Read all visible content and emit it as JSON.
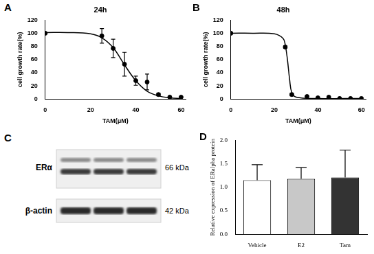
{
  "chart_data": [
    {
      "panel_label": "A",
      "type": "scatter",
      "title": "24h",
      "x_label": "TAM(μM)",
      "y_label": "cell growth rate(%)",
      "xlim": [
        0,
        62
      ],
      "xticks": [
        0,
        20,
        40,
        60
      ],
      "ylim": [
        0,
        120
      ],
      "yticks": [
        0,
        20,
        40,
        60,
        80,
        100,
        120
      ],
      "grid": false,
      "series": [
        {
          "type": "scatter",
          "marker": "circle",
          "color": "#000000",
          "x": [
            0,
            25,
            30,
            35,
            40,
            45,
            50,
            55,
            60
          ],
          "values": [
            100,
            96,
            77,
            53,
            28,
            26,
            7,
            3,
            3
          ],
          "errors": [
            null,
            11,
            14,
            18,
            7,
            12,
            2,
            null,
            null
          ]
        },
        {
          "type": "line",
          "marker": "none",
          "line_style": "solid",
          "color": "#000000",
          "x": [
            0,
            10,
            20,
            25,
            30,
            35,
            40,
            45,
            50,
            55,
            60
          ],
          "values": [
            101,
            101,
            99,
            93,
            78,
            52,
            28,
            12,
            5,
            2,
            1
          ]
        }
      ]
    },
    {
      "panel_label": "B",
      "type": "scatter",
      "title": "48h",
      "x_label": "TAM(μM)",
      "y_label": "cell growth rate(%)",
      "xlim": [
        0,
        62
      ],
      "xticks": [
        0,
        20,
        40,
        60
      ],
      "ylim": [
        0,
        120
      ],
      "yticks": [
        0,
        20,
        40,
        60,
        80,
        100,
        120
      ],
      "grid": false,
      "series": [
        {
          "type": "scatter",
          "marker": "circle",
          "color": "#000000",
          "x": [
            0,
            25,
            28,
            35,
            40,
            45,
            50,
            55,
            60
          ],
          "values": [
            100,
            79,
            7,
            4,
            2,
            3,
            1,
            1,
            1
          ],
          "errors": [
            null,
            2,
            2,
            null,
            null,
            null,
            null,
            null,
            null
          ]
        },
        {
          "type": "line",
          "marker": "none",
          "line_style": "solid",
          "color": "#000000",
          "x": [
            0,
            10,
            20,
            24,
            25,
            26,
            27,
            28,
            30,
            40,
            60
          ],
          "values": [
            100,
            100,
            99,
            92,
            82,
            60,
            30,
            10,
            3,
            1,
            1
          ]
        }
      ]
    },
    {
      "panel_label": "D",
      "type": "bar",
      "y_label": "Relative expression of ERalpha protein",
      "categories": [
        "Vehicle",
        "E2",
        "Tam"
      ],
      "values": [
        1.15,
        1.18,
        1.21
      ],
      "errors": [
        0.33,
        0.24,
        0.58
      ],
      "colors": [
        "#ffffff",
        "#c8c8c8",
        "#333333"
      ],
      "ylim": [
        0,
        2.0
      ],
      "yticks": [
        {
          "value": 0,
          "label": "0.0"
        },
        0.5,
        {
          "value": 1,
          "label": "1.0"
        },
        1.5,
        {
          "value": 2,
          "label": "2.0"
        }
      ],
      "grid": false
    }
  ],
  "blot": {
    "panel_label": "C",
    "bands": [
      {
        "label": "ERα",
        "size": "66 kDa"
      },
      {
        "label": "β-actin",
        "size": "42 kDa"
      }
    ]
  }
}
